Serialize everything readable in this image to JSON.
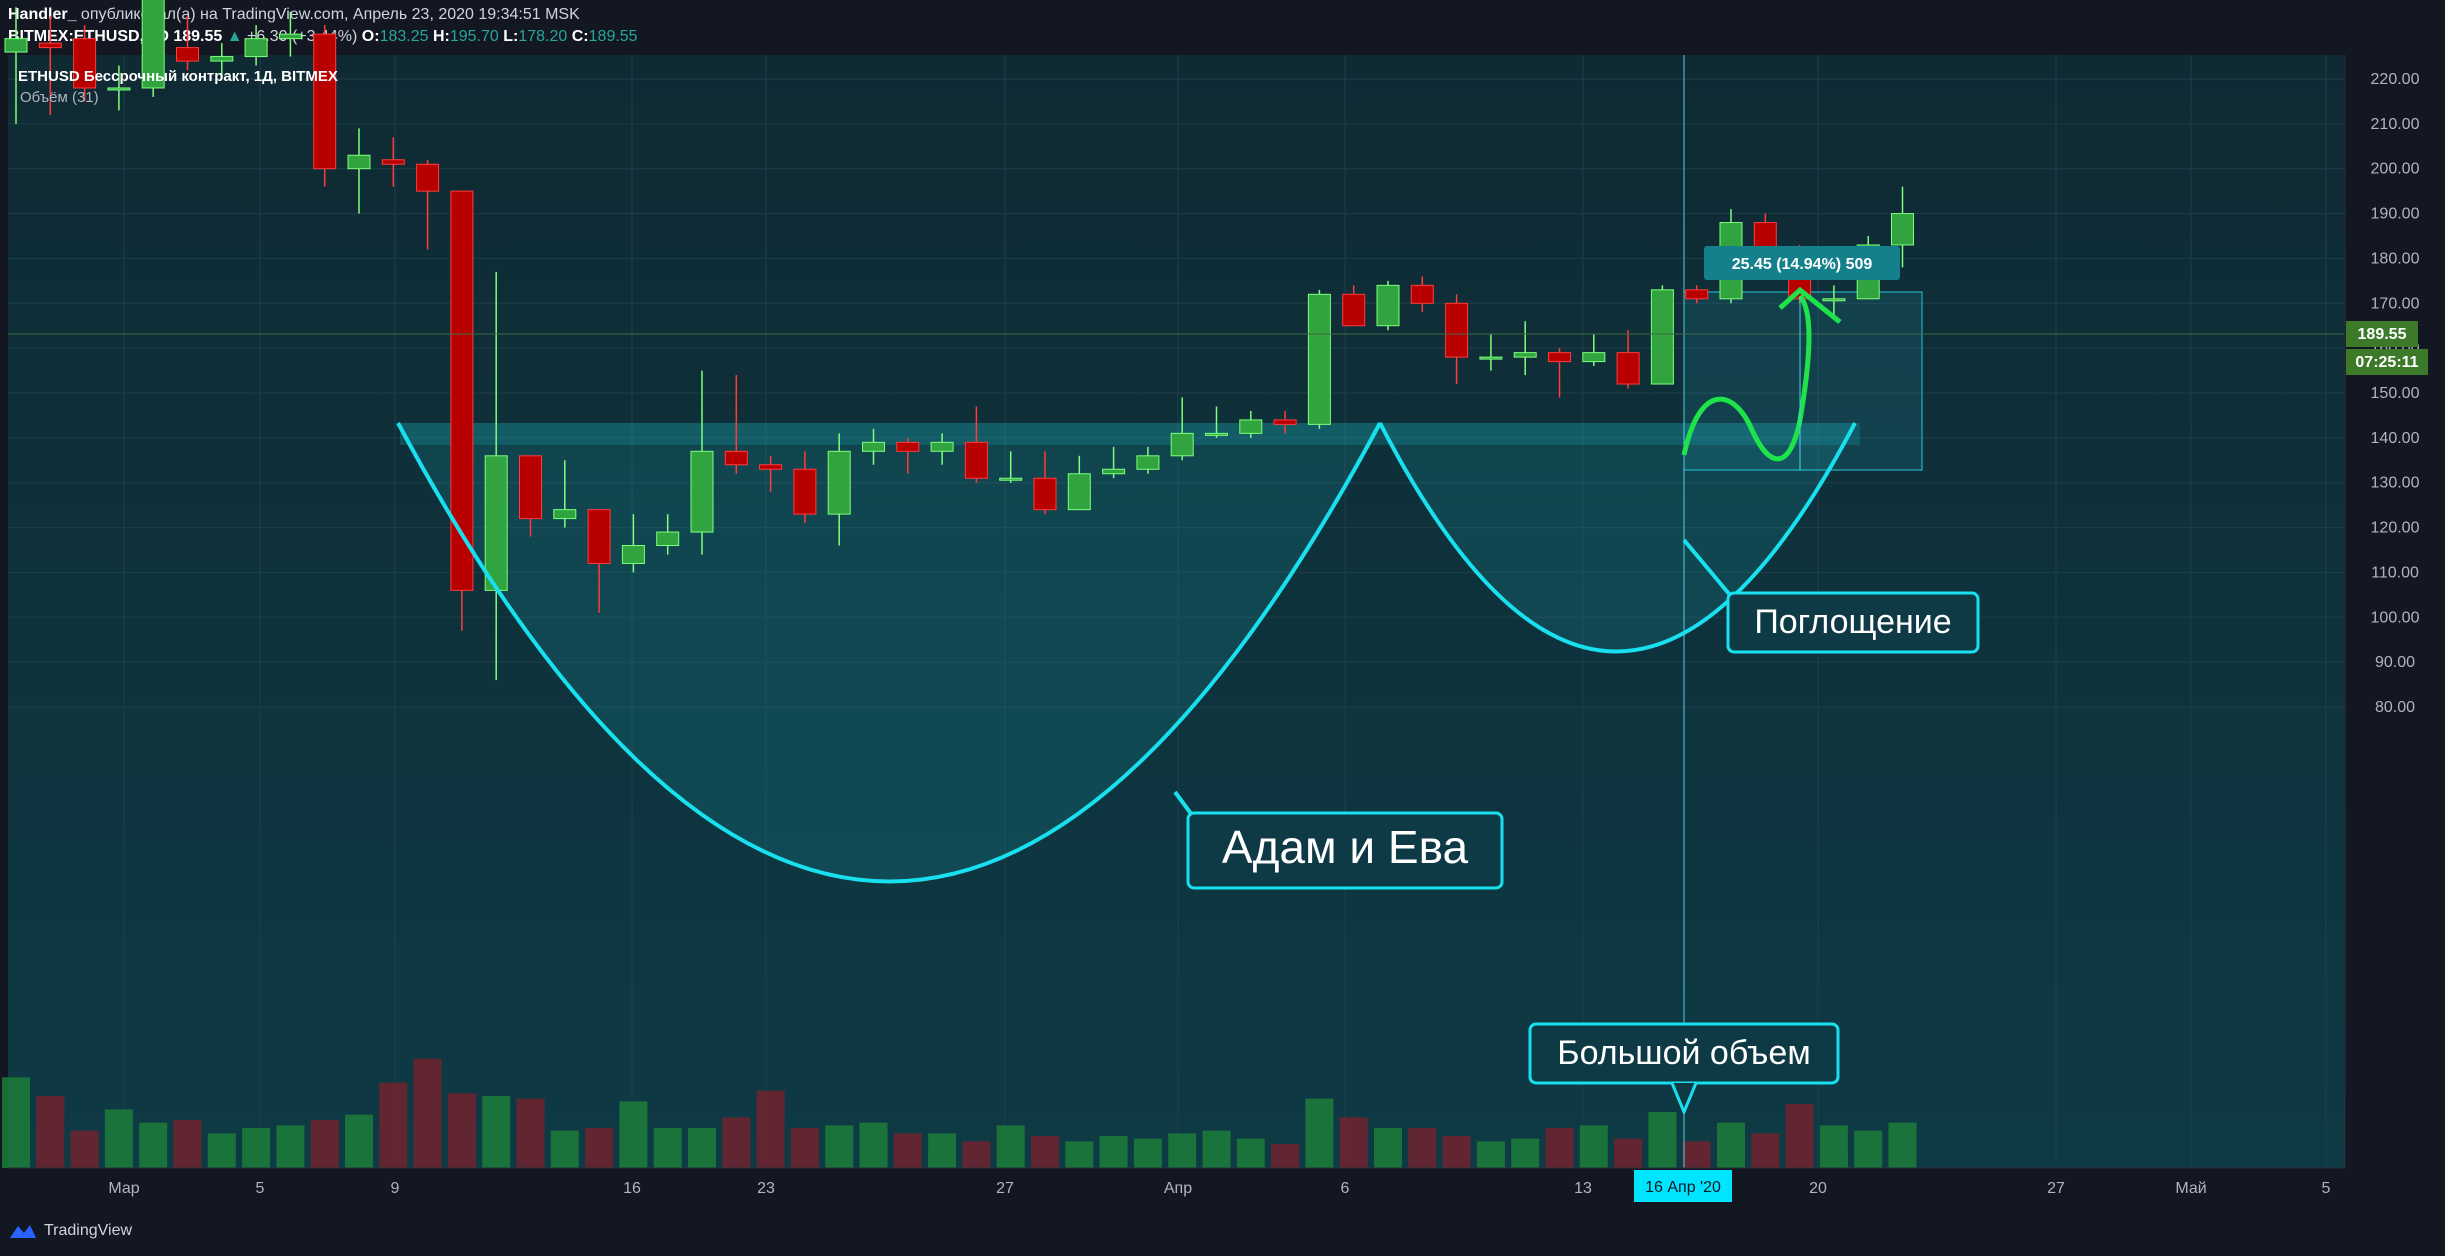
{
  "header": {
    "author": "Handler_",
    "published": "опубликовал(а) на TradingView.com, Апрель 23, 2020 19:34:51 MSK",
    "symbol": "BITMEX:ETHUSD, 1D",
    "last": "189.55",
    "change": "+6.30 (+3.44%)",
    "o_label": "O:",
    "o": "183.25",
    "h_label": "H:",
    "h": "195.70",
    "l_label": "L:",
    "l": "178.20",
    "c_label": "C:",
    "c": "189.55"
  },
  "legend": {
    "title": "ETHUSD Бессрочный контракт, 1Д, BITMEX",
    "volume": "Объём (31)"
  },
  "price_tag": "189.55",
  "timer_tag": "07:25:11",
  "crosshair_date": "16 Апр '20",
  "measure_label": "25.45 (14.94%) 509",
  "annotations": {
    "adam_eve": "Адам и Ева",
    "engulfing": "Поглощение",
    "big_volume": "Большой объем"
  },
  "footer": {
    "brand": "TradingView"
  },
  "colors": {
    "up": "#26a69a",
    "down": "#b71c1c",
    "accent": "#00e5ff",
    "bg": "#131722"
  },
  "chart_data": {
    "type": "candlestick",
    "title": "ETHUSD Бессрочный контракт, 1Д, BITMEX",
    "y_ticks": [
      "80.00",
      "90.00",
      "100.00",
      "110.00",
      "120.00",
      "130.00",
      "140.00",
      "150.00",
      "160.00",
      "170.00",
      "180.00",
      "190.00",
      "200.00",
      "210.00",
      "220.00"
    ],
    "ylim": [
      70,
      230
    ],
    "x_ticks": [
      "Мар",
      "5",
      "9",
      "16",
      "23",
      "27",
      "Апр",
      "6",
      "13",
      "20",
      "27",
      "Май",
      "5"
    ],
    "candles": [
      {
        "o": 226,
        "h": 236,
        "l": 210,
        "c": 229
      },
      {
        "o": 228,
        "h": 234,
        "l": 212,
        "c": 227
      },
      {
        "o": 229,
        "h": 232,
        "l": 215,
        "c": 218
      },
      {
        "o": 218,
        "h": 223,
        "l": 213,
        "c": 218
      },
      {
        "o": 218,
        "h": 240,
        "l": 216,
        "c": 238
      },
      {
        "o": 227,
        "h": 234,
        "l": 222,
        "c": 224
      },
      {
        "o": 224,
        "h": 228,
        "l": 221,
        "c": 225
      },
      {
        "o": 225,
        "h": 232,
        "l": 223,
        "c": 229
      },
      {
        "o": 229,
        "h": 235,
        "l": 225,
        "c": 230
      },
      {
        "o": 230,
        "h": 232,
        "l": 196,
        "c": 200
      },
      {
        "o": 200,
        "h": 209,
        "l": 190,
        "c": 203
      },
      {
        "o": 202,
        "h": 207,
        "l": 196,
        "c": 201
      },
      {
        "o": 201,
        "h": 202,
        "l": 182,
        "c": 195
      },
      {
        "o": 195,
        "h": 195,
        "l": 97,
        "c": 106
      },
      {
        "o": 106,
        "h": 177,
        "l": 86,
        "c": 136
      },
      {
        "o": 136,
        "h": 136,
        "l": 118,
        "c": 122
      },
      {
        "o": 122,
        "h": 135,
        "l": 120,
        "c": 124
      },
      {
        "o": 124,
        "h": 124,
        "l": 101,
        "c": 112
      },
      {
        "o": 112,
        "h": 123,
        "l": 110,
        "c": 116
      },
      {
        "o": 116,
        "h": 123,
        "l": 114,
        "c": 119
      },
      {
        "o": 119,
        "h": 155,
        "l": 114,
        "c": 137
      },
      {
        "o": 137,
        "h": 154,
        "l": 132,
        "c": 134
      },
      {
        "o": 134,
        "h": 136,
        "l": 128,
        "c": 133
      },
      {
        "o": 133,
        "h": 137,
        "l": 121,
        "c": 123
      },
      {
        "o": 123,
        "h": 141,
        "l": 116,
        "c": 137
      },
      {
        "o": 137,
        "h": 142,
        "l": 134,
        "c": 139
      },
      {
        "o": 139,
        "h": 140,
        "l": 132,
        "c": 137
      },
      {
        "o": 137,
        "h": 141,
        "l": 134,
        "c": 139
      },
      {
        "o": 139,
        "h": 147,
        "l": 130,
        "c": 131
      },
      {
        "o": 131,
        "h": 137,
        "l": 130,
        "c": 131
      },
      {
        "o": 131,
        "h": 137,
        "l": 123,
        "c": 124
      },
      {
        "o": 124,
        "h": 136,
        "l": 124,
        "c": 132
      },
      {
        "o": 132,
        "h": 138,
        "l": 131,
        "c": 133
      },
      {
        "o": 133,
        "h": 138,
        "l": 132,
        "c": 136
      },
      {
        "o": 136,
        "h": 149,
        "l": 135,
        "c": 141
      },
      {
        "o": 141,
        "h": 147,
        "l": 140,
        "c": 141
      },
      {
        "o": 141,
        "h": 146,
        "l": 140,
        "c": 144
      },
      {
        "o": 144,
        "h": 146,
        "l": 141,
        "c": 143
      },
      {
        "o": 143,
        "h": 173,
        "l": 142,
        "c": 172
      },
      {
        "o": 172,
        "h": 174,
        "l": 165,
        "c": 165
      },
      {
        "o": 165,
        "h": 175,
        "l": 164,
        "c": 174
      },
      {
        "o": 174,
        "h": 176,
        "l": 168,
        "c": 170
      },
      {
        "o": 170,
        "h": 172,
        "l": 152,
        "c": 158
      },
      {
        "o": 158,
        "h": 163,
        "l": 155,
        "c": 158
      },
      {
        "o": 158,
        "h": 166,
        "l": 154,
        "c": 159
      },
      {
        "o": 159,
        "h": 160,
        "l": 149,
        "c": 157
      },
      {
        "o": 157,
        "h": 163,
        "l": 156,
        "c": 159
      },
      {
        "o": 159,
        "h": 164,
        "l": 151,
        "c": 152
      },
      {
        "o": 152,
        "h": 174,
        "l": 152,
        "c": 173
      },
      {
        "o": 173,
        "h": 174,
        "l": 170,
        "c": 171
      },
      {
        "o": 171,
        "h": 191,
        "l": 170,
        "c": 188
      },
      {
        "o": 188,
        "h": 190,
        "l": 180,
        "c": 180
      },
      {
        "o": 181,
        "h": 183,
        "l": 170,
        "c": 171
      },
      {
        "o": 171,
        "h": 174,
        "l": 167,
        "c": 171
      },
      {
        "o": 171,
        "h": 185,
        "l": 171,
        "c": 183
      },
      {
        "o": 183,
        "h": 196,
        "l": 178,
        "c": 190
      }
    ],
    "volume": [
      34,
      27,
      14,
      22,
      17,
      18,
      13,
      15,
      16,
      18,
      20,
      32,
      41,
      28,
      27,
      26,
      14,
      15,
      25,
      15,
      15,
      19,
      29,
      15,
      16,
      17,
      13,
      13,
      10,
      16,
      12,
      10,
      12,
      11,
      13,
      14,
      11,
      9,
      26,
      19,
      15,
      15,
      12,
      10,
      11,
      15,
      16,
      11,
      21,
      10,
      17,
      13,
      24,
      16,
      14,
      17
    ],
    "cup_label": "Адам и Ева",
    "engulfing_label": "Поглощение",
    "volume_label": "Большой объем",
    "measure": "25.45 (14.94%) 509"
  }
}
